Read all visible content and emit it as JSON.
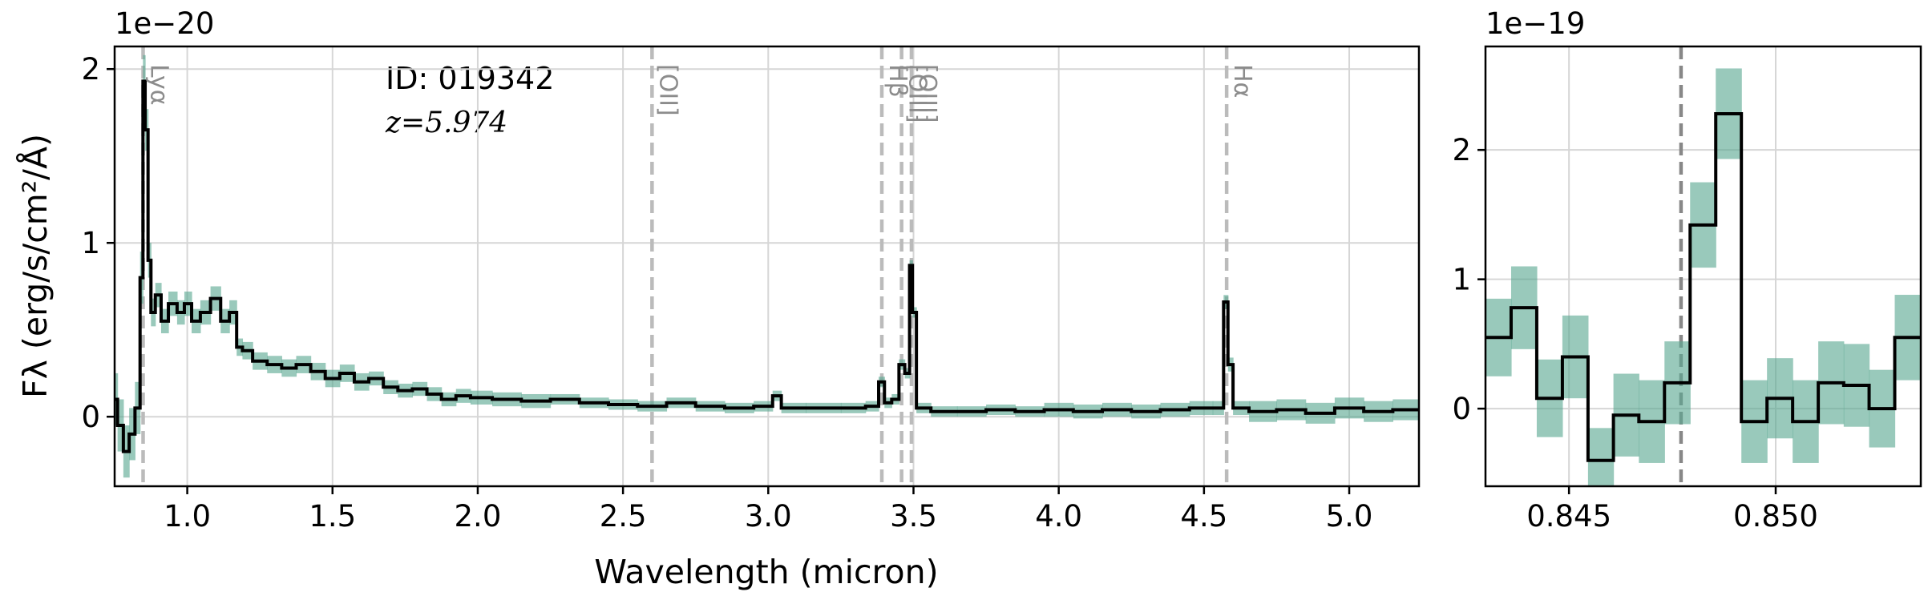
{
  "chart_data": [
    {
      "type": "step",
      "scale_label": "1e−20",
      "x_label": "Wavelength (micron)",
      "y_label": "Fλ (erg/s/cm²/Å)",
      "annotations": [
        "ID: 019342",
        "z=5.974"
      ],
      "x": [
        0.75,
        0.77,
        0.79,
        0.81,
        0.83,
        0.845,
        0.85,
        0.86,
        0.87,
        0.88,
        0.9,
        0.92,
        0.95,
        0.98,
        1.0,
        1.03,
        1.06,
        1.1,
        1.13,
        1.16,
        1.18,
        1.2,
        1.25,
        1.3,
        1.35,
        1.4,
        1.45,
        1.5,
        1.55,
        1.6,
        1.65,
        1.7,
        1.75,
        1.8,
        1.85,
        1.9,
        1.95,
        2.0,
        2.1,
        2.2,
        2.3,
        2.4,
        2.5,
        2.6,
        2.7,
        2.8,
        2.9,
        3.0,
        3.03,
        3.06,
        3.2,
        3.3,
        3.37,
        3.39,
        3.41,
        3.44,
        3.46,
        3.48,
        3.493,
        3.5,
        3.52,
        3.6,
        3.7,
        3.8,
        3.9,
        4.0,
        4.1,
        4.2,
        4.3,
        4.4,
        4.5,
        4.56,
        4.575,
        4.59,
        4.61,
        4.7,
        4.8,
        4.9,
        5.0,
        5.1,
        5.2
      ],
      "values": [
        0.1,
        -0.05,
        -0.2,
        -0.1,
        0.05,
        0.8,
        1.93,
        1.65,
        0.9,
        0.6,
        0.7,
        0.55,
        0.65,
        0.6,
        0.65,
        0.55,
        0.6,
        0.68,
        0.55,
        0.6,
        0.4,
        0.38,
        0.32,
        0.3,
        0.28,
        0.3,
        0.26,
        0.22,
        0.25,
        0.2,
        0.22,
        0.17,
        0.15,
        0.16,
        0.13,
        0.1,
        0.12,
        0.11,
        0.1,
        0.09,
        0.1,
        0.08,
        0.07,
        0.06,
        0.08,
        0.06,
        0.05,
        0.06,
        0.12,
        0.05,
        0.05,
        0.05,
        0.06,
        0.2,
        0.08,
        0.1,
        0.3,
        0.25,
        0.87,
        0.6,
        0.05,
        0.03,
        0.03,
        0.04,
        0.03,
        0.04,
        0.03,
        0.04,
        0.03,
        0.04,
        0.05,
        0.05,
        0.66,
        0.3,
        0.05,
        0.03,
        0.04,
        0.02,
        0.05,
        0.03,
        0.04
      ],
      "errors": [
        0.15,
        0.15,
        0.15,
        0.15,
        0.15,
        0.15,
        0.15,
        0.12,
        0.1,
        0.08,
        0.07,
        0.07,
        0.07,
        0.07,
        0.07,
        0.07,
        0.07,
        0.07,
        0.07,
        0.07,
        0.05,
        0.05,
        0.05,
        0.05,
        0.05,
        0.05,
        0.05,
        0.05,
        0.05,
        0.05,
        0.04,
        0.04,
        0.04,
        0.04,
        0.04,
        0.04,
        0.04,
        0.04,
        0.04,
        0.04,
        0.03,
        0.03,
        0.03,
        0.03,
        0.03,
        0.03,
        0.03,
        0.03,
        0.03,
        0.03,
        0.03,
        0.03,
        0.03,
        0.03,
        0.03,
        0.03,
        0.03,
        0.03,
        0.03,
        0.03,
        0.03,
        0.03,
        0.03,
        0.03,
        0.03,
        0.04,
        0.04,
        0.04,
        0.04,
        0.04,
        0.04,
        0.04,
        0.04,
        0.04,
        0.04,
        0.06,
        0.06,
        0.06,
        0.06,
        0.06,
        0.06
      ],
      "color": "#000000",
      "band_color": "#5ba891",
      "marker_color": "#bbbbbb",
      "lines": [
        {
          "x": 0.848,
          "label": "Lyα"
        },
        {
          "x": 2.6,
          "label": "[OII]"
        },
        {
          "x": 3.391,
          "label": "Hβ"
        },
        {
          "x": 3.459,
          "label": "[OIII]"
        },
        {
          "x": 3.493,
          "label": "[OIII]"
        },
        {
          "x": 4.578,
          "label": "Hα"
        }
      ],
      "xlim": [
        0.75,
        5.24
      ],
      "ylim": [
        -0.4,
        2.13
      ],
      "xticks": [
        {
          "value": 1,
          "label": "1.0"
        },
        1.5,
        {
          "value": 2,
          "label": "2.0"
        },
        2.5,
        {
          "value": 3,
          "label": "3.0"
        },
        3.5,
        {
          "value": 4,
          "label": "4.0"
        },
        4.5,
        {
          "value": 5,
          "label": "5.0"
        }
      ],
      "yticks": [
        0,
        1,
        2
      ],
      "grid": true
    },
    {
      "type": "step",
      "scale_label": "1e−19",
      "x": [
        0.84329,
        0.84391,
        0.84453,
        0.84515,
        0.84577,
        0.84638,
        0.847,
        0.84762,
        0.84824,
        0.84886,
        0.84948,
        0.8501,
        0.85072,
        0.85134,
        0.85195,
        0.85257,
        0.85319
      ],
      "values": [
        0.55,
        0.78,
        0.08,
        0.4,
        -0.4,
        -0.05,
        -0.1,
        0.2,
        1.42,
        2.28,
        -0.1,
        0.08,
        -0.1,
        0.2,
        0.18,
        0.0,
        0.55
      ],
      "errors": [
        0.3,
        0.32,
        0.3,
        0.32,
        0.25,
        0.32,
        0.32,
        0.32,
        0.33,
        0.35,
        0.32,
        0.31,
        0.32,
        0.32,
        0.32,
        0.3,
        0.33
      ],
      "color": "#000000",
      "band_color": "#5ba891",
      "marker_color": "#888888",
      "lines": [
        {
          "x": 0.84771
        }
      ],
      "xlim": [
        0.84298,
        0.85351
      ],
      "ylim": [
        -0.6,
        2.8
      ],
      "xticks": [
        0.845,
        {
          "value": 0.85,
          "label": "0.850"
        }
      ],
      "yticks": [
        0,
        1,
        2
      ],
      "grid": true
    }
  ]
}
